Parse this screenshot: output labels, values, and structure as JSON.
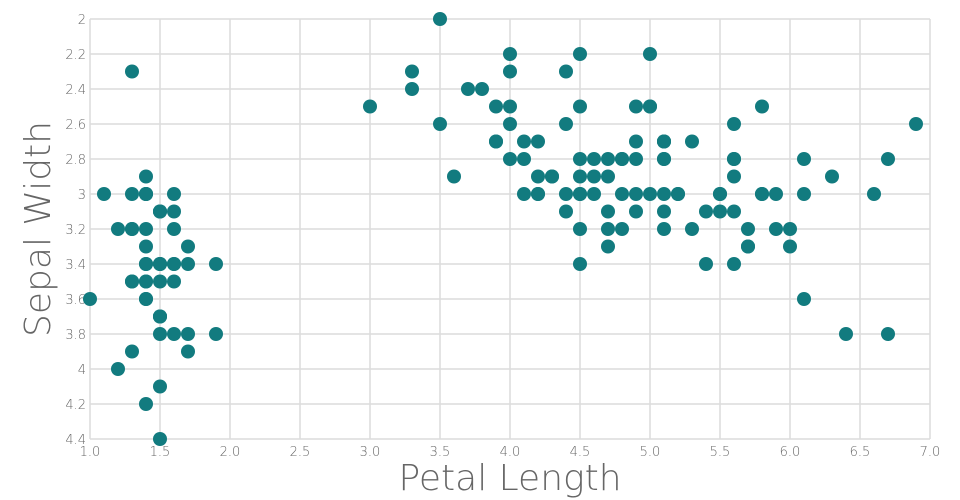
{
  "chart_data": {
    "type": "scatter",
    "xlabel": "Petal Length",
    "ylabel": "Sepal Width",
    "xlim": [
      1.0,
      7.0
    ],
    "ylim": [
      2.0,
      4.4
    ],
    "y_inverted": true,
    "grid": true,
    "x_ticks": [
      "1.0",
      "1.5",
      "2.0",
      "2.5",
      "3.0",
      "3.5",
      "4.0",
      "4.5",
      "5.0",
      "5.5",
      "6.0",
      "6.5",
      "7.0"
    ],
    "y_ticks": [
      "2",
      "2.2",
      "2.4",
      "2.6",
      "2.8",
      "3",
      "3.2",
      "3.4",
      "3.6",
      "3.8",
      "4",
      "4.2",
      "4.4"
    ],
    "point_color": "#127b7f",
    "x": [
      1.4,
      1.4,
      1.3,
      1.5,
      1.4,
      1.7,
      1.4,
      1.5,
      1.4,
      1.5,
      1.5,
      1.6,
      1.4,
      1.1,
      1.2,
      1.5,
      1.3,
      1.4,
      1.7,
      1.5,
      1.7,
      1.5,
      1.0,
      1.7,
      1.9,
      1.6,
      1.6,
      1.5,
      1.4,
      1.6,
      1.6,
      1.5,
      1.5,
      1.4,
      1.5,
      1.2,
      1.3,
      1.4,
      1.3,
      1.5,
      1.3,
      1.3,
      1.3,
      1.6,
      1.9,
      1.4,
      1.6,
      1.4,
      1.5,
      1.4,
      4.7,
      4.5,
      4.9,
      4.0,
      4.6,
      4.5,
      4.7,
      3.3,
      4.6,
      3.9,
      3.5,
      4.2,
      4.0,
      4.7,
      3.6,
      4.4,
      4.5,
      4.1,
      4.5,
      3.9,
      4.8,
      4.0,
      4.9,
      4.7,
      4.3,
      4.4,
      4.8,
      5.0,
      4.5,
      3.5,
      3.8,
      3.7,
      3.9,
      5.1,
      4.5,
      4.5,
      4.7,
      4.4,
      4.1,
      4.0,
      4.4,
      4.6,
      4.0,
      3.3,
      4.2,
      4.2,
      4.2,
      4.3,
      3.0,
      4.1,
      6.0,
      5.1,
      5.9,
      5.6,
      5.8,
      6.6,
      4.5,
      6.3,
      5.8,
      6.1,
      5.1,
      5.3,
      5.5,
      5.0,
      5.1,
      5.3,
      5.5,
      6.7,
      6.9,
      5.0,
      5.7,
      4.9,
      6.7,
      4.9,
      5.7,
      6.0,
      4.8,
      4.9,
      5.6,
      5.8,
      6.1,
      6.4,
      5.6,
      5.1,
      5.6,
      6.1,
      5.6,
      5.5,
      4.8,
      5.4,
      5.6,
      5.1,
      5.1,
      5.9,
      5.7,
      5.2,
      5.0,
      5.2,
      5.4,
      5.1
    ],
    "y": [
      3.5,
      3.0,
      3.2,
      3.1,
      3.6,
      3.9,
      3.4,
      3.4,
      2.9,
      3.1,
      3.7,
      3.4,
      3.0,
      3.0,
      4.0,
      4.4,
      3.9,
      3.5,
      3.8,
      3.8,
      3.4,
      3.7,
      3.6,
      3.3,
      3.4,
      3.0,
      3.4,
      3.5,
      3.4,
      3.2,
      3.1,
      3.4,
      4.1,
      4.2,
      3.1,
      3.2,
      3.5,
      3.6,
      3.0,
      3.4,
      3.5,
      2.3,
      3.2,
      3.5,
      3.8,
      3.0,
      3.8,
      3.2,
      3.7,
      3.3,
      3.2,
      3.2,
      3.1,
      2.3,
      2.8,
      2.8,
      3.3,
      2.4,
      2.9,
      2.7,
      2.0,
      3.0,
      2.2,
      2.9,
      2.9,
      3.1,
      3.0,
      2.7,
      2.2,
      2.5,
      3.2,
      2.8,
      2.5,
      2.8,
      2.9,
      3.0,
      2.8,
      3.0,
      2.9,
      2.6,
      2.4,
      2.4,
      2.7,
      2.7,
      3.0,
      3.4,
      3.1,
      2.3,
      3.0,
      2.5,
      2.6,
      3.0,
      2.6,
      2.3,
      2.7,
      3.0,
      2.9,
      2.9,
      2.5,
      2.8,
      3.3,
      2.7,
      3.0,
      2.9,
      3.0,
      3.0,
      2.5,
      2.9,
      2.5,
      3.6,
      3.2,
      2.7,
      3.0,
      2.5,
      2.8,
      3.2,
      3.0,
      3.8,
      2.6,
      2.2,
      3.2,
      2.8,
      2.8,
      2.7,
      3.3,
      3.2,
      2.8,
      3.0,
      2.8,
      3.0,
      2.8,
      3.8,
      2.8,
      2.8,
      2.6,
      3.0,
      3.4,
      3.1,
      3.0,
      3.1,
      3.1,
      3.1,
      2.7,
      3.2,
      3.3,
      3.0,
      2.5,
      3.0,
      3.4,
      3.0
    ]
  }
}
